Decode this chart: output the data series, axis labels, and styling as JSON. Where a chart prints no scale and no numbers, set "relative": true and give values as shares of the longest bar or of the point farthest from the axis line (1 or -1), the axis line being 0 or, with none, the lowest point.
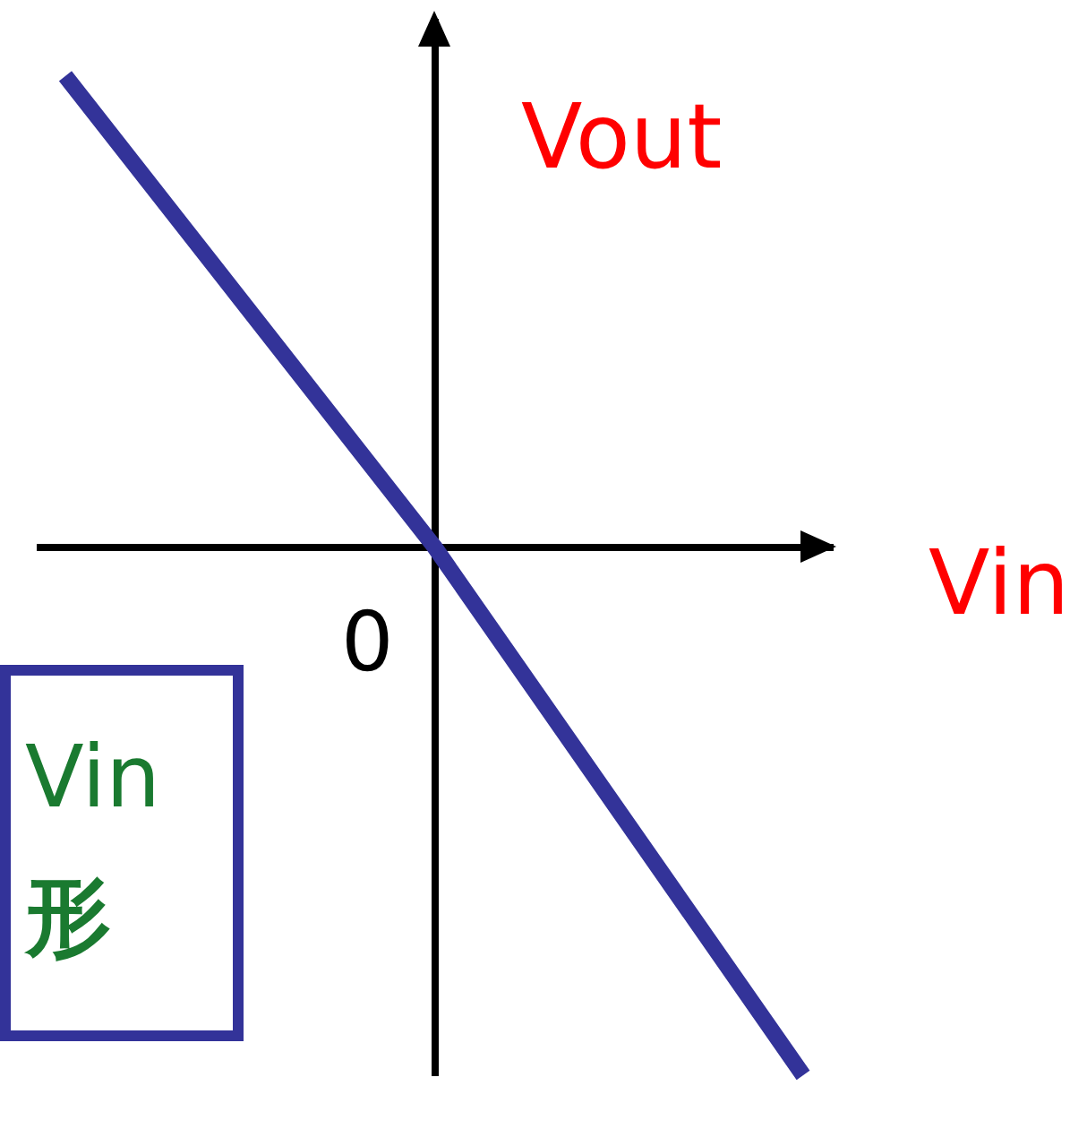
{
  "chart_data": {
    "type": "line",
    "relative": true,
    "xlabel": "Vin",
    "ylabel": "Vout",
    "categories": [
      null,
      null,
      null
    ],
    "series": [
      {
        "color": "#333399",
        "values": [
          0.89,
          0,
          -1
        ]
      }
    ],
    "annotations": [
      "0",
      "Vin",
      "形"
    ],
    "grid": false,
    "marker": "none",
    "line_style": "solid"
  }
}
